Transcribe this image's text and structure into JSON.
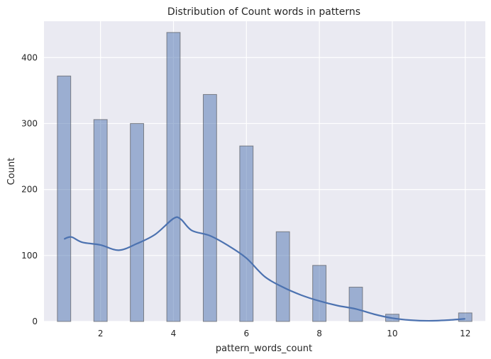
{
  "chart_data": {
    "type": "bar",
    "subtype": "histogram-with-kde",
    "title": "Distribution of Count words in patterns",
    "xlabel": "pattern_words_count",
    "ylabel": "Count",
    "xlim": [
      0.45,
      12.55
    ],
    "ylim": [
      0,
      455
    ],
    "xticks": [
      2,
      4,
      6,
      8,
      10,
      12
    ],
    "yticks": [
      0,
      100,
      200,
      300,
      400
    ],
    "grid": true,
    "bar_width": 0.3667,
    "bars": [
      {
        "x": 1,
        "value": 372
      },
      {
        "x": 2,
        "value": 306
      },
      {
        "x": 3,
        "value": 300
      },
      {
        "x": 4,
        "value": 438
      },
      {
        "x": 5,
        "value": 344
      },
      {
        "x": 6,
        "value": 266
      },
      {
        "x": 7,
        "value": 136
      },
      {
        "x": 8,
        "value": 85
      },
      {
        "x": 9,
        "value": 52
      },
      {
        "x": 10,
        "value": 11
      },
      {
        "x": 12,
        "value": 13
      }
    ],
    "kde": {
      "x": [
        1.0,
        1.2,
        1.5,
        2.0,
        2.5,
        3.0,
        3.5,
        4.0,
        4.2,
        4.5,
        5.0,
        5.5,
        6.0,
        6.5,
        7.0,
        7.5,
        8.0,
        8.5,
        9.0,
        9.5,
        10.0,
        10.5,
        11.0,
        11.5,
        12.0
      ],
      "y": [
        125,
        128,
        120,
        116,
        108,
        118,
        132,
        156,
        155,
        138,
        130,
        115,
        96,
        68,
        52,
        40,
        31,
        24,
        19,
        11,
        5,
        2,
        1,
        2,
        4
      ]
    },
    "colors": {
      "bar": "#4c72b0",
      "line": "#4c72b0",
      "background": "#eaeaf2"
    }
  }
}
